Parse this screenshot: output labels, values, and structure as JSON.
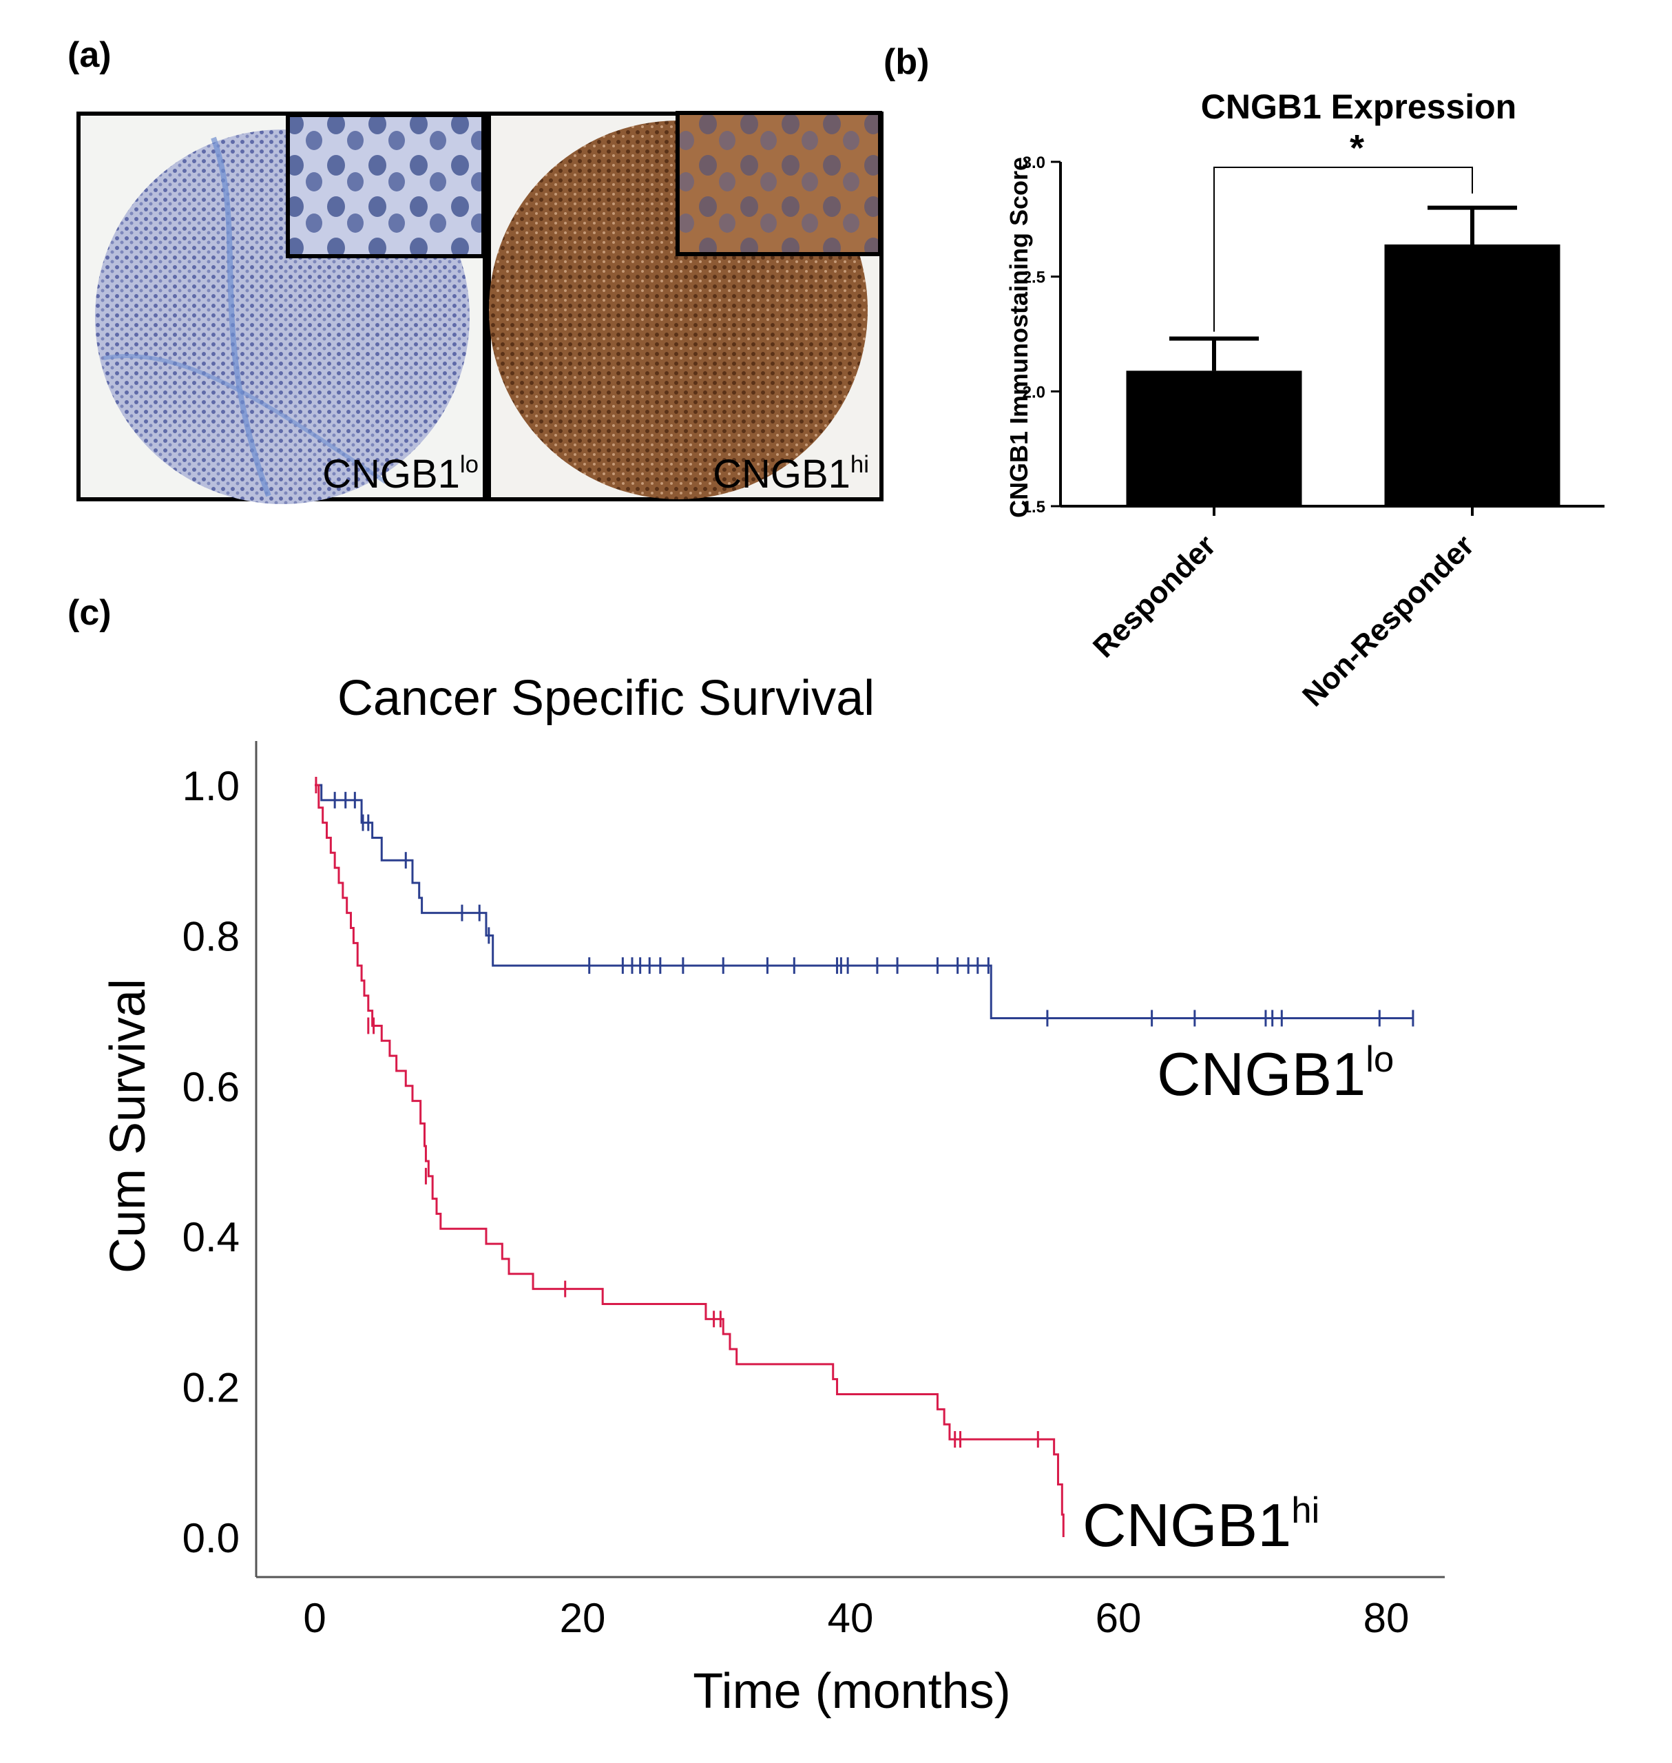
{
  "panel_labels": {
    "a": "(a)",
    "b": "(b)",
    "c": "(c)"
  },
  "histology": {
    "left_label": "CNGB1",
    "left_sup": "lo",
    "right_label": "CNGB1",
    "right_sup": "hi"
  },
  "colors": {
    "lo": "#2b3f8f",
    "hi": "#d81b4a",
    "bar": "#000000",
    "stain_blue": "#9aa3c8",
    "stain_brown": "#7a4a2a"
  },
  "chart_data": [
    {
      "type": "bar",
      "title": "CNGB1 Expression",
      "ylabel": "CNGB1 Immunostaining Score",
      "xlabel": "",
      "categories": [
        "Responder",
        "Non-Responder"
      ],
      "values": [
        2.09,
        2.64
      ],
      "errors": [
        0.14,
        0.16
      ],
      "ylim": [
        1.5,
        3.0
      ],
      "yticks": [
        "1.5",
        "2.0",
        "2.5",
        "3.0"
      ],
      "ytick_values": [
        1.5,
        2.0,
        2.5,
        3.0
      ],
      "significance": "*"
    },
    {
      "type": "line",
      "title": "Cancer Specific Survival",
      "xlabel": "Time (months)",
      "ylabel": "Cum Survival",
      "xlim": [
        -4,
        85
      ],
      "ylim": [
        -0.05,
        1.06
      ],
      "xticks": [
        "0",
        "20",
        "40",
        "60",
        "80"
      ],
      "xtick_values": [
        0,
        20,
        40,
        60,
        80
      ],
      "yticks": [
        "0.0",
        "0.2",
        "0.4",
        "0.6",
        "0.8",
        "1.0"
      ],
      "ytick_values": [
        0,
        0.2,
        0.4,
        0.6,
        0.8,
        1.0
      ],
      "series": [
        {
          "name": "CNGB1",
          "sup": "lo",
          "color_key": "lo",
          "steps": [
            [
              0,
              1.0
            ],
            [
              0.5,
              0.98
            ],
            [
              3.5,
              0.95
            ],
            [
              4.3,
              0.93
            ],
            [
              5,
              0.9
            ],
            [
              7.3,
              0.87
            ],
            [
              7.8,
              0.85
            ],
            [
              8,
              0.83
            ],
            [
              12.8,
              0.8
            ],
            [
              13.3,
              0.76
            ],
            [
              50.5,
              0.69
            ],
            [
              82,
              0.69
            ]
          ],
          "censored": [
            [
              1.5,
              0.98
            ],
            [
              2.3,
              0.98
            ],
            [
              3,
              0.98
            ],
            [
              3.6,
              0.95
            ],
            [
              4,
              0.95
            ],
            [
              6.8,
              0.9
            ],
            [
              11,
              0.83
            ],
            [
              12.3,
              0.83
            ],
            [
              13,
              0.8
            ],
            [
              20.5,
              0.76
            ],
            [
              23,
              0.76
            ],
            [
              23.7,
              0.76
            ],
            [
              24.3,
              0.76
            ],
            [
              25,
              0.76
            ],
            [
              25.8,
              0.76
            ],
            [
              27.5,
              0.76
            ],
            [
              30.5,
              0.76
            ],
            [
              33.8,
              0.76
            ],
            [
              35.8,
              0.76
            ],
            [
              39,
              0.76
            ],
            [
              39.3,
              0.76
            ],
            [
              39.8,
              0.76
            ],
            [
              42,
              0.76
            ],
            [
              43.5,
              0.76
            ],
            [
              46.5,
              0.76
            ],
            [
              48,
              0.76
            ],
            [
              48.8,
              0.76
            ],
            [
              49.5,
              0.76
            ],
            [
              50.3,
              0.76
            ],
            [
              54.7,
              0.69
            ],
            [
              62.5,
              0.69
            ],
            [
              65.7,
              0.69
            ],
            [
              71,
              0.69
            ],
            [
              71.5,
              0.69
            ],
            [
              72.2,
              0.69
            ],
            [
              79.5,
              0.69
            ],
            [
              82,
              0.69
            ]
          ]
        },
        {
          "name": "CNGB1",
          "sup": "hi",
          "color_key": "hi",
          "steps": [
            [
              0,
              1.0
            ],
            [
              0.3,
              0.97
            ],
            [
              0.6,
              0.95
            ],
            [
              0.9,
              0.93
            ],
            [
              1.2,
              0.91
            ],
            [
              1.5,
              0.89
            ],
            [
              1.8,
              0.87
            ],
            [
              2.1,
              0.85
            ],
            [
              2.4,
              0.83
            ],
            [
              2.7,
              0.81
            ],
            [
              2.9,
              0.79
            ],
            [
              3.2,
              0.76
            ],
            [
              3.5,
              0.74
            ],
            [
              3.7,
              0.72
            ],
            [
              4,
              0.7
            ],
            [
              4.3,
              0.68
            ],
            [
              5,
              0.66
            ],
            [
              5.6,
              0.64
            ],
            [
              6.1,
              0.62
            ],
            [
              6.8,
              0.6
            ],
            [
              7.3,
              0.58
            ],
            [
              7.9,
              0.55
            ],
            [
              8.2,
              0.52
            ],
            [
              8.3,
              0.5
            ],
            [
              8.5,
              0.48
            ],
            [
              8.8,
              0.45
            ],
            [
              9.1,
              0.43
            ],
            [
              9.4,
              0.41
            ],
            [
              12.8,
              0.39
            ],
            [
              14,
              0.37
            ],
            [
              14.5,
              0.35
            ],
            [
              16.3,
              0.33
            ],
            [
              21.5,
              0.31
            ],
            [
              29.2,
              0.29
            ],
            [
              30.5,
              0.27
            ],
            [
              31,
              0.25
            ],
            [
              31.5,
              0.23
            ],
            [
              38.7,
              0.21
            ],
            [
              39,
              0.19
            ],
            [
              46.5,
              0.17
            ],
            [
              47,
              0.15
            ],
            [
              47.4,
              0.13
            ],
            [
              55.2,
              0.11
            ],
            [
              55.5,
              0.07
            ],
            [
              55.8,
              0.03
            ],
            [
              55.9,
              0.0
            ]
          ],
          "censored": [
            [
              0.1,
              1.0
            ],
            [
              4,
              0.68
            ],
            [
              4.4,
              0.68
            ],
            [
              8.3,
              0.48
            ],
            [
              18.7,
              0.33
            ],
            [
              29.8,
              0.29
            ],
            [
              30.3,
              0.29
            ],
            [
              47.8,
              0.13
            ],
            [
              48.2,
              0.13
            ],
            [
              54,
              0.13
            ]
          ]
        }
      ]
    }
  ]
}
